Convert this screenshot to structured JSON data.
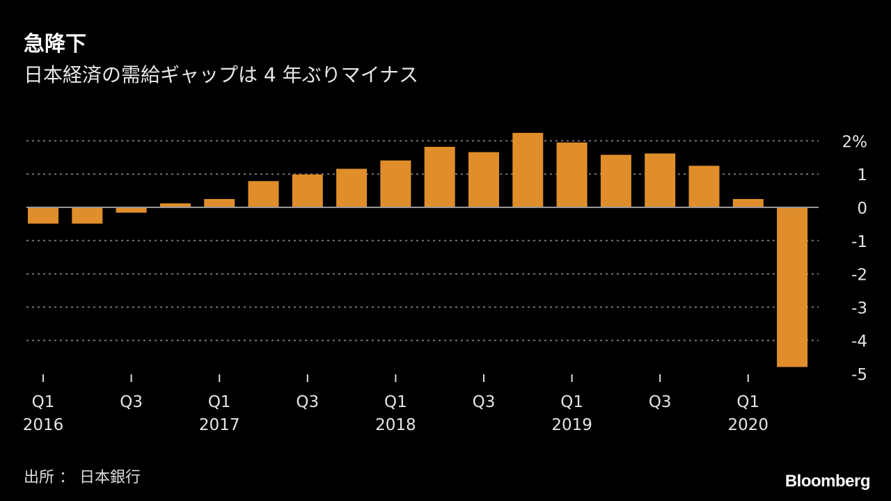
{
  "title": "急降下",
  "subtitle": "日本経済の需給ギャップは 4 年ぶりマイナス",
  "source": "出所 ： 日本銀行",
  "brand": "Bloomberg",
  "colors": {
    "bar": "#E08E2B",
    "background": "#000000",
    "grid": "#777777"
  },
  "chart_data": {
    "type": "bar",
    "categories": [
      "2016 Q1",
      "2016 Q2",
      "2016 Q3",
      "2016 Q4",
      "2017 Q1",
      "2017 Q2",
      "2017 Q3",
      "2017 Q4",
      "2018 Q1",
      "2018 Q2",
      "2018 Q3",
      "2018 Q4",
      "2019 Q1",
      "2019 Q2",
      "2019 Q3",
      "2019 Q4",
      "2020 Q1",
      "2020 Q2"
    ],
    "values": [
      -0.49,
      -0.49,
      -0.16,
      0.12,
      0.25,
      0.79,
      0.99,
      1.16,
      1.41,
      1.82,
      1.66,
      2.24,
      1.95,
      1.58,
      1.62,
      1.25,
      0.25,
      -4.8
    ],
    "ylim": [
      -5,
      2.2
    ],
    "yticks": [
      2,
      1,
      0,
      -1,
      -2,
      -3,
      -4,
      -5
    ],
    "ytick_labels": [
      "2%",
      "1",
      "0",
      "-1",
      "-2",
      "-3",
      "-4",
      "-5"
    ],
    "xtick_labels": [
      {
        "index": 0,
        "q": "Q1",
        "year": "2016"
      },
      {
        "index": 2,
        "q": "Q3",
        "year": ""
      },
      {
        "index": 4,
        "q": "Q1",
        "year": "2017"
      },
      {
        "index": 6,
        "q": "Q3",
        "year": ""
      },
      {
        "index": 8,
        "q": "Q1",
        "year": "2018"
      },
      {
        "index": 10,
        "q": "Q3",
        "year": ""
      },
      {
        "index": 12,
        "q": "Q1",
        "year": "2019"
      },
      {
        "index": 14,
        "q": "Q3",
        "year": ""
      },
      {
        "index": 16,
        "q": "Q1",
        "year": "2020"
      }
    ],
    "grid": true,
    "xlabel": "",
    "ylabel": ""
  }
}
